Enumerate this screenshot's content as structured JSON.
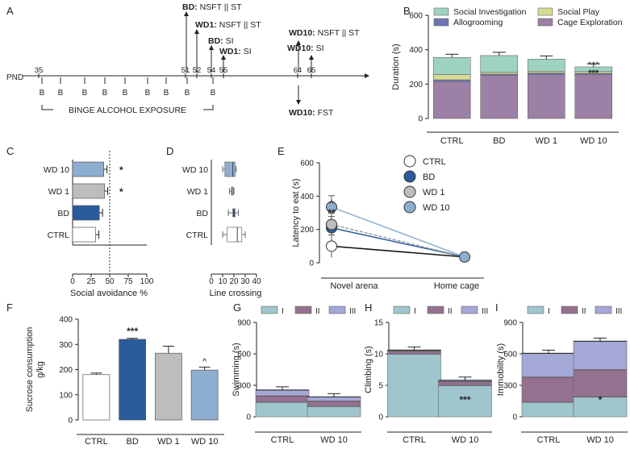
{
  "colors": {
    "social_investigation": "#9ed3c0",
    "social_play": "#d6dc93",
    "allogrooming": "#6e75b6",
    "cage_exploration": "#9d80a5",
    "ctrl": "#ffffff",
    "bd": "#2a5b9d",
    "wd1": "#bdbdbd",
    "wd10": "#8eaed0",
    "phase1": "#9fc6cc",
    "phase2": "#93718f",
    "phase3": "#a4a8d6"
  },
  "panels": {
    "A": {
      "letter": "A",
      "axis_label": "PND",
      "ticks": [
        "35",
        "51",
        "52",
        "54",
        "55",
        "64",
        "65"
      ],
      "binge_marker": "B",
      "binge_label": "BINGE ALCOHOL EXPOSURE",
      "events": [
        {
          "group": "BD",
          "test": "NSFT || ST"
        },
        {
          "group": "WD1",
          "test": "NSFT || ST"
        },
        {
          "group": "BD",
          "test": "SI"
        },
        {
          "group": "WD1",
          "test": "SI"
        },
        {
          "group": "WD10",
          "test": "NSFT || ST"
        },
        {
          "group": "WD10",
          "test": "SI"
        },
        {
          "group": "WD10",
          "test": "FST"
        }
      ]
    }
  },
  "chart_data": [
    {
      "panel": "B",
      "type": "bar",
      "stacked": true,
      "categories": [
        "CTRL",
        "BD",
        "WD 1",
        "WD 10"
      ],
      "ylabel": "Duration (s)",
      "ylim": [
        0,
        600
      ],
      "yticks": [
        "0",
        "200",
        "400",
        "600"
      ],
      "legend": [
        "Social Investigation",
        "Social Play",
        "Allogrooming",
        "Cage Exploration"
      ],
      "series": [
        {
          "name": "Cage Exploration",
          "values": [
            215,
            250,
            255,
            255
          ]
        },
        {
          "name": "Allogrooming",
          "values": [
            10,
            8,
            10,
            8
          ]
        },
        {
          "name": "Social Play",
          "values": [
            30,
            10,
            10,
            10
          ]
        },
        {
          "name": "Social Investigation",
          "values": [
            100,
            98,
            70,
            27
          ]
        }
      ],
      "significance": [
        {
          "category": "WD 10",
          "labels": [
            "^^^",
            "***"
          ]
        }
      ]
    },
    {
      "panel": "C",
      "type": "bar",
      "orientation": "horizontal",
      "categories": [
        "WD 10",
        "WD 1",
        "BD",
        "CTRL"
      ],
      "values": [
        42,
        43,
        36,
        31
      ],
      "xlabel": "Social avoidance %",
      "xlim": [
        0,
        100
      ],
      "xticks": [
        "0",
        "25",
        "50",
        "75",
        "100"
      ],
      "reference_line": 50,
      "significance": [
        {
          "category": "WD 10",
          "label": "*"
        },
        {
          "category": "WD 1",
          "label": "*"
        }
      ]
    },
    {
      "panel": "D",
      "type": "boxplot",
      "orientation": "horizontal",
      "categories": [
        "WD 10",
        "WD 1",
        "BD",
        "CTRL"
      ],
      "boxes": [
        {
          "min": 10,
          "q1": 12,
          "median": 19,
          "q3": 21,
          "max": 22
        },
        {
          "min": 16,
          "q1": 18,
          "median": 18,
          "q3": 19,
          "max": 20
        },
        {
          "min": 15,
          "q1": 19,
          "median": 20,
          "q3": 21,
          "max": 24
        },
        {
          "min": 10,
          "q1": 14,
          "median": 23,
          "q3": 27,
          "max": 30
        }
      ],
      "xlabel": "Line crossing",
      "xlim": [
        0,
        40
      ],
      "xticks": [
        "0",
        "10",
        "20",
        "30",
        "40"
      ]
    },
    {
      "panel": "E",
      "type": "line",
      "x": [
        "Novel arena",
        "Home cage"
      ],
      "ylabel": "Latency to eat (s)",
      "ylim": [
        0,
        600
      ],
      "yticks": [
        "0",
        "200",
        "400",
        "600"
      ],
      "series": [
        {
          "name": "CTRL",
          "values": [
            100,
            35
          ]
        },
        {
          "name": "BD",
          "values": [
            210,
            35
          ]
        },
        {
          "name": "WD 1",
          "values": [
            230,
            35
          ]
        },
        {
          "name": "WD 10",
          "values": [
            335,
            35
          ]
        }
      ],
      "significance": [
        {
          "x": "Novel arena",
          "labels": [
            "^",
            "**"
          ]
        }
      ]
    },
    {
      "panel": "F",
      "type": "bar",
      "categories": [
        "CTRL",
        "BD",
        "WD 1",
        "WD 10"
      ],
      "values": [
        180,
        320,
        265,
        198
      ],
      "errors": [
        6,
        4,
        28,
        12
      ],
      "ylabel": "Sucrose consumption g/kg",
      "ylim": [
        0,
        400
      ],
      "yticks": [
        "0",
        "100",
        "200",
        "300",
        "400"
      ],
      "significance": [
        {
          "category": "BD",
          "label": "***"
        },
        {
          "category": "WD 10",
          "label": "^"
        }
      ]
    },
    {
      "panel": "G",
      "type": "bar",
      "stacked": true,
      "categories": [
        "CTRL",
        "WD 10"
      ],
      "ylabel": "Swimming (s)",
      "ylim": [
        0,
        900
      ],
      "yticks": [
        "0",
        "300",
        "600",
        "900"
      ],
      "legend": [
        "I",
        "II",
        "III"
      ],
      "series": [
        {
          "name": "I",
          "values": [
            140,
            100
          ]
        },
        {
          "name": "II",
          "values": [
            60,
            50
          ]
        },
        {
          "name": "III",
          "values": [
            55,
            40
          ]
        }
      ]
    },
    {
      "panel": "H",
      "type": "bar",
      "stacked": true,
      "categories": [
        "CTRL",
        "WD 10"
      ],
      "ylabel": "Climbing (s)",
      "ylim": [
        0,
        15
      ],
      "yticks": [
        "0",
        "5",
        "10",
        "15"
      ],
      "legend": [
        "I",
        "II",
        "III"
      ],
      "series": [
        {
          "name": "I",
          "values": [
            10,
            5
          ]
        },
        {
          "name": "II",
          "values": [
            0.5,
            0.6
          ]
        },
        {
          "name": "III",
          "values": [
            0.1,
            0.2
          ]
        }
      ],
      "significance": [
        {
          "category": "WD 10",
          "label": "***"
        }
      ]
    },
    {
      "panel": "I",
      "type": "bar",
      "stacked": true,
      "categories": [
        "CTRL",
        "WD 10"
      ],
      "ylabel": "Immobility (s)",
      "ylim": [
        0,
        900
      ],
      "yticks": [
        "0",
        "300",
        "600",
        "900"
      ],
      "legend": [
        "I",
        "II",
        "III"
      ],
      "series": [
        {
          "name": "I",
          "values": [
            140,
            190
          ]
        },
        {
          "name": "II",
          "values": [
            240,
            260
          ]
        },
        {
          "name": "III",
          "values": [
            225,
            270
          ]
        }
      ],
      "significance": [
        {
          "category": "WD 10",
          "label": "*"
        }
      ]
    }
  ]
}
